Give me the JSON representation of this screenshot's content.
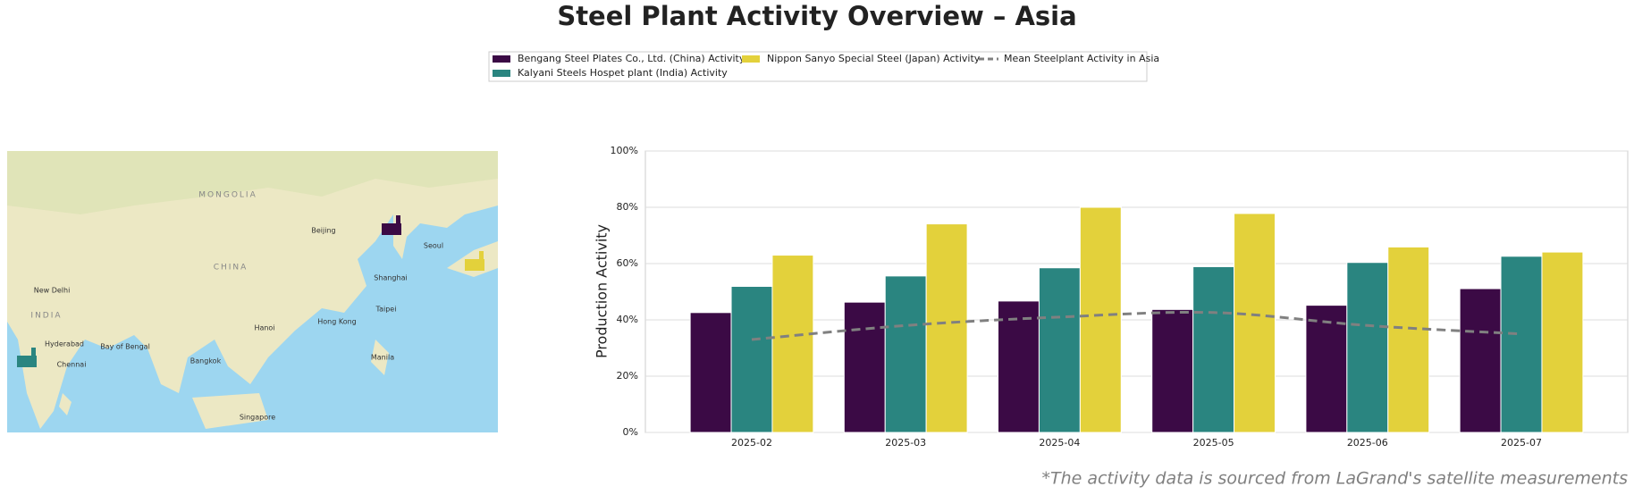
{
  "chart_data": {
    "type": "bar",
    "title": "Steel Plant Activity Overview – Asia",
    "ylabel": "Production Activity",
    "footnote": "*The activity data is sourced from LaGrand's satellite measurements",
    "categories": [
      "2025-02",
      "2025-03",
      "2025-04",
      "2025-05",
      "2025-06",
      "2025-07"
    ],
    "series": [
      {
        "name": "Bengang Steel Plates Co., Ltd. (China) Activity",
        "color": "#3b0a45",
        "values": [
          42.6,
          46.3,
          46.7,
          43.7,
          45.2,
          51.1
        ]
      },
      {
        "name": "Kalyani Steels Hospet plant (India) Activity",
        "color": "#2a8580",
        "values": [
          51.9,
          55.6,
          58.5,
          58.9,
          60.4,
          62.6
        ]
      },
      {
        "name": "Nippon Sanyo Special Steel (Japan) Activity",
        "color": "#e3d13b",
        "values": [
          63,
          74.1,
          80,
          77.8,
          65.9,
          64.1
        ]
      },
      {
        "name": "Mean Steelplant Activity in Asia",
        "type": "line",
        "color": "#808080",
        "values": [
          33,
          38,
          41,
          42.6,
          38,
          35
        ]
      }
    ],
    "ylim": [
      0,
      100
    ],
    "yticks": [
      {
        "value": 0,
        "label": "0%"
      },
      {
        "value": 20,
        "label": "20%"
      },
      {
        "value": 40,
        "label": "40%"
      },
      {
        "value": 60,
        "label": "60%"
      },
      {
        "value": 80,
        "label": "80%"
      },
      {
        "value": 100,
        "label": "100%"
      }
    ],
    "grid": true,
    "legend": "top"
  },
  "map": {
    "labels": [
      "MONGOLIA",
      "CHINA",
      "INDIA",
      "Beijing",
      "Shanghai",
      "Seoul",
      "Hong Kong",
      "Bangkok",
      "Manila",
      "Singapore",
      "Chennai",
      "Hyderabad",
      "Taipei",
      "Hanoi",
      "Bay of Bengal",
      "New Delhi"
    ]
  }
}
